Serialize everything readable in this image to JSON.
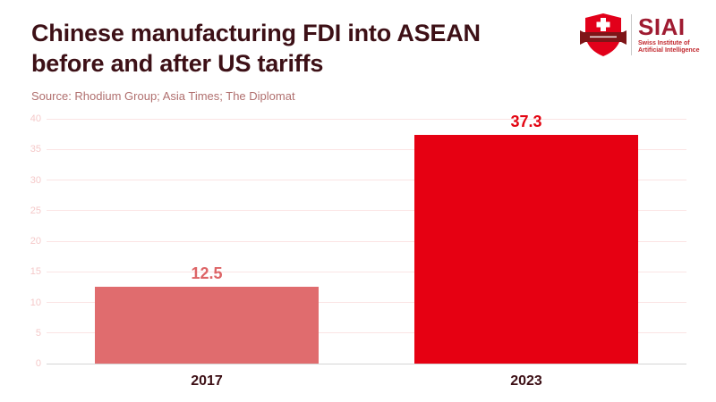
{
  "header": {
    "title_line1": "Chinese manufacturing FDI into ASEAN",
    "title_line2": "before and after US tariffs",
    "title_color": "#3d1016",
    "source_text": "Source: Rhodium Group; Asia Times; The Diplomat",
    "source_color": "#b06f6e"
  },
  "logo": {
    "name": "SIAI",
    "tagline_line1": "Swiss Institute of",
    "tagline_line2": "Artificial Intelligence",
    "siai_color": "#9f1b31",
    "tagline_color": "#c1272d",
    "shield_red": "#e2001a",
    "banner_dark_red": "#7f1518"
  },
  "chart_data": {
    "type": "bar",
    "title": "Chinese manufacturing FDI into ASEAN before and after US tariffs",
    "source": "Source: Rhodium Group; Asia Times; The Diplomat",
    "categories": [
      "2017",
      "2023"
    ],
    "values": [
      12.5,
      37.3
    ],
    "value_labels": [
      "12.5",
      "37.3"
    ],
    "bar_colors": [
      "#e06c6e",
      "#e60012"
    ],
    "value_label_colors": [
      "#dd6466",
      "#e30613"
    ],
    "xlabel": "",
    "ylabel": "",
    "ylim": [
      0,
      40
    ],
    "yticks": [
      0,
      5,
      10,
      15,
      20,
      25,
      30,
      35,
      40
    ],
    "grid": true,
    "legend": false,
    "gridline_color": "#fbe4e4",
    "axis_line_color": "#d6d6d6",
    "tick_label_color": "#f5c9c9",
    "category_label_color": "#3d1016"
  }
}
